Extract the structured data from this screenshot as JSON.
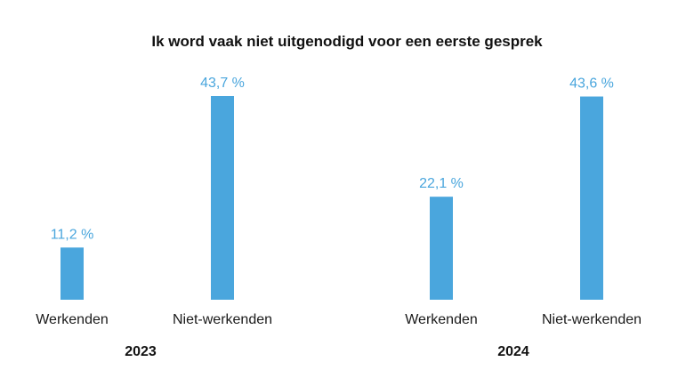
{
  "chart_data": {
    "type": "bar",
    "title": "Ik word vaak niet uitgenodigd voor een eerste gesprek",
    "categories": [
      "Werkenden",
      "Niet-werkenden"
    ],
    "groups": [
      {
        "label": "2023",
        "values": [
          11.2,
          43.7
        ],
        "value_labels": [
          "11,2 %",
          "43,7 %"
        ]
      },
      {
        "label": "2024",
        "values": [
          22.1,
          43.6
        ],
        "value_labels": [
          "22,1 %",
          "43,6 %"
        ]
      }
    ],
    "ylim": [
      0,
      50
    ],
    "bar_color": "#4aa6dd",
    "label_color": "#4aa6dd",
    "grid": false,
    "legend": "none"
  }
}
